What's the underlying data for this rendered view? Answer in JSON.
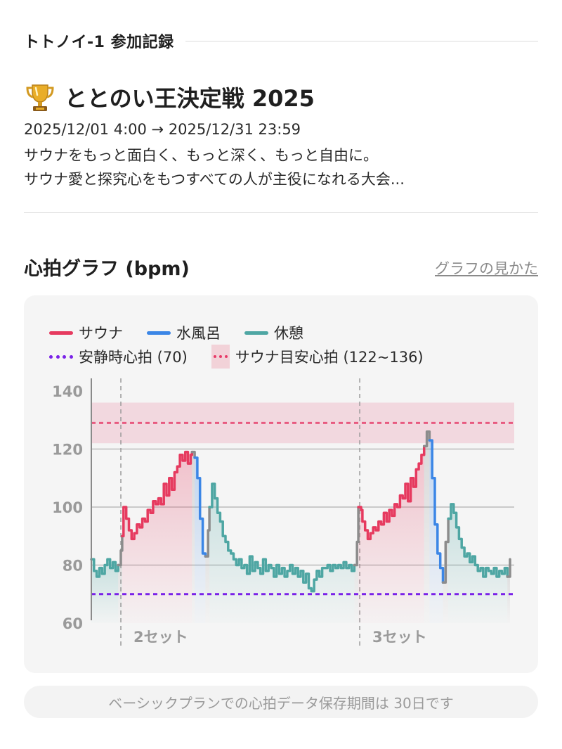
{
  "section": {
    "title": "トトノイ-1 参加記録"
  },
  "event": {
    "name": "ととのい王決定戦 2025",
    "date_range": "2025/12/01 4:00 → 2025/12/31 23:59",
    "description_lines": [
      "サウナをもっと面白く、もっと深く、もっと自由に。",
      "サウナ愛と探究心をもつすべての人が主役になれる大会..."
    ],
    "icon": "trophy-icon"
  },
  "graph": {
    "title": "心拍グラフ (bpm)",
    "help_link": "グラフの見かた"
  },
  "colors": {
    "sauna": "#e63a5f",
    "cold_bath": "#3b86e6",
    "rest": "#4ea6a3",
    "resting_hr": "#7a22e8",
    "target_zone": "#e85a80"
  },
  "chart_data": {
    "type": "line",
    "legend": {
      "sauna": "サウナ",
      "cold_bath": "水風呂",
      "rest": "休憩",
      "resting_hr": "安静時心拍 (70)",
      "target_zone": "サウナ目安心拍 (122~136)"
    },
    "ylim": [
      60,
      140
    ],
    "yticks": [
      "60",
      "80",
      "100",
      "120",
      "140"
    ],
    "resting_hr": 70,
    "target_zone": [
      122,
      136
    ],
    "target_line": 129,
    "set_labels": [
      "2セット",
      "3セット"
    ],
    "set_markers_x": [
      11,
      100
    ],
    "xlim": [
      0,
      156
    ],
    "segments": [
      {
        "phase": "rest",
        "points": [
          [
            0,
            82
          ],
          [
            1,
            78
          ],
          [
            2,
            76
          ],
          [
            3,
            79
          ],
          [
            4,
            77
          ],
          [
            5,
            80
          ],
          [
            6,
            82
          ],
          [
            7,
            79
          ],
          [
            8,
            81
          ],
          [
            9,
            78
          ],
          [
            10,
            80
          ]
        ]
      },
      {
        "phase": "transition",
        "points": [
          [
            10,
            80
          ],
          [
            11,
            85
          ],
          [
            11.5,
            90
          ]
        ]
      },
      {
        "phase": "sauna",
        "points": [
          [
            11.5,
            90
          ],
          [
            12,
            100
          ],
          [
            13,
            96
          ],
          [
            14,
            92
          ],
          [
            15,
            89
          ],
          [
            16,
            91
          ],
          [
            17,
            94
          ],
          [
            18,
            93
          ],
          [
            19,
            96
          ],
          [
            20,
            95
          ],
          [
            21,
            99
          ],
          [
            22,
            98
          ],
          [
            23,
            102
          ],
          [
            24,
            101
          ],
          [
            25,
            103
          ],
          [
            26,
            101
          ],
          [
            27,
            108
          ],
          [
            28,
            104
          ],
          [
            29,
            110
          ],
          [
            30,
            106
          ],
          [
            31,
            112
          ],
          [
            32,
            114
          ],
          [
            33,
            118
          ],
          [
            34,
            116
          ],
          [
            35,
            119
          ],
          [
            36,
            115
          ],
          [
            37,
            118
          ],
          [
            37.5,
            119
          ]
        ]
      },
      {
        "phase": "transition",
        "points": [
          [
            37.5,
            119
          ],
          [
            38.5,
            117
          ]
        ]
      },
      {
        "phase": "cold_bath",
        "points": [
          [
            38.5,
            117
          ],
          [
            39.5,
            110
          ],
          [
            40.5,
            96
          ],
          [
            41.5,
            84
          ],
          [
            42.5,
            83
          ]
        ]
      },
      {
        "phase": "transition",
        "points": [
          [
            42.5,
            83
          ],
          [
            43.5,
            92
          ],
          [
            44,
            100
          ]
        ]
      },
      {
        "phase": "rest",
        "points": [
          [
            44,
            100
          ],
          [
            45,
            108
          ],
          [
            46,
            103
          ],
          [
            47,
            98
          ],
          [
            48,
            95
          ],
          [
            49,
            90
          ],
          [
            50,
            88
          ],
          [
            51,
            85
          ],
          [
            52,
            84
          ],
          [
            53,
            82
          ],
          [
            54,
            80
          ],
          [
            55,
            82
          ],
          [
            56,
            79
          ],
          [
            57,
            80
          ],
          [
            58,
            77
          ],
          [
            59,
            83
          ],
          [
            60,
            78
          ],
          [
            61,
            81
          ],
          [
            62,
            79
          ],
          [
            63,
            77
          ],
          [
            64,
            82
          ],
          [
            65,
            78
          ],
          [
            66,
            80
          ],
          [
            67,
            79
          ],
          [
            68,
            76
          ],
          [
            69,
            80
          ],
          [
            70,
            77
          ],
          [
            71,
            79
          ],
          [
            72,
            76
          ],
          [
            73,
            78
          ],
          [
            74,
            80
          ],
          [
            75,
            77
          ],
          [
            76,
            79
          ],
          [
            77,
            76
          ],
          [
            78,
            78
          ],
          [
            79,
            74
          ],
          [
            80,
            77
          ],
          [
            81,
            72
          ],
          [
            82,
            71
          ],
          [
            83,
            75
          ],
          [
            84,
            78
          ],
          [
            85,
            76
          ],
          [
            86,
            79
          ],
          [
            87,
            79
          ],
          [
            88,
            80
          ],
          [
            89,
            78
          ],
          [
            90,
            80
          ],
          [
            91,
            79
          ],
          [
            92,
            80
          ],
          [
            93,
            79
          ],
          [
            94,
            81
          ],
          [
            95,
            79
          ],
          [
            96,
            80
          ],
          [
            97,
            78
          ],
          [
            98,
            80
          ]
        ]
      },
      {
        "phase": "transition",
        "points": [
          [
            98,
            80
          ],
          [
            99,
            88
          ],
          [
            99.5,
            100
          ]
        ]
      },
      {
        "phase": "sauna",
        "points": [
          [
            99.5,
            100
          ],
          [
            100.5,
            99
          ],
          [
            101,
            95
          ],
          [
            102,
            92
          ],
          [
            103,
            89
          ],
          [
            104,
            91
          ],
          [
            105,
            93
          ],
          [
            106,
            92
          ],
          [
            107,
            95
          ],
          [
            108,
            94
          ],
          [
            109,
            98
          ],
          [
            110,
            95
          ],
          [
            111,
            99
          ],
          [
            112,
            97
          ],
          [
            113,
            101
          ],
          [
            114,
            100
          ],
          [
            115,
            104
          ],
          [
            116,
            103
          ],
          [
            117,
            108
          ],
          [
            118,
            102
          ],
          [
            119,
            110
          ],
          [
            120,
            107
          ],
          [
            121,
            113
          ],
          [
            122,
            115
          ],
          [
            123,
            118
          ],
          [
            124,
            121
          ]
        ]
      },
      {
        "phase": "transition",
        "points": [
          [
            124,
            121
          ],
          [
            125,
            126
          ],
          [
            126,
            123
          ]
        ]
      },
      {
        "phase": "cold_bath",
        "points": [
          [
            126,
            123
          ],
          [
            127,
            110
          ],
          [
            128,
            94
          ],
          [
            129,
            84
          ],
          [
            130,
            79
          ],
          [
            131,
            74
          ]
        ]
      },
      {
        "phase": "transition",
        "points": [
          [
            131,
            74
          ],
          [
            132,
            88
          ],
          [
            133,
            96
          ]
        ]
      },
      {
        "phase": "rest",
        "points": [
          [
            133,
            96
          ],
          [
            134,
            101
          ],
          [
            135,
            98
          ],
          [
            136,
            93
          ],
          [
            137,
            89
          ],
          [
            138,
            86
          ],
          [
            139,
            83
          ],
          [
            140,
            84
          ],
          [
            141,
            81
          ],
          [
            142,
            83
          ],
          [
            143,
            80
          ],
          [
            144,
            78
          ],
          [
            145,
            79
          ],
          [
            146,
            76
          ],
          [
            147,
            79
          ],
          [
            148,
            78
          ],
          [
            149,
            77
          ],
          [
            150,
            79
          ],
          [
            151,
            76
          ],
          [
            152,
            78
          ],
          [
            153,
            77
          ],
          [
            154,
            79
          ],
          [
            155,
            76
          ]
        ]
      },
      {
        "phase": "transition",
        "points": [
          [
            155,
            76
          ],
          [
            156,
            82
          ]
        ]
      }
    ]
  },
  "footer": {
    "note": "ベーシックプランでの心拍データ保存期間は 30日です"
  }
}
